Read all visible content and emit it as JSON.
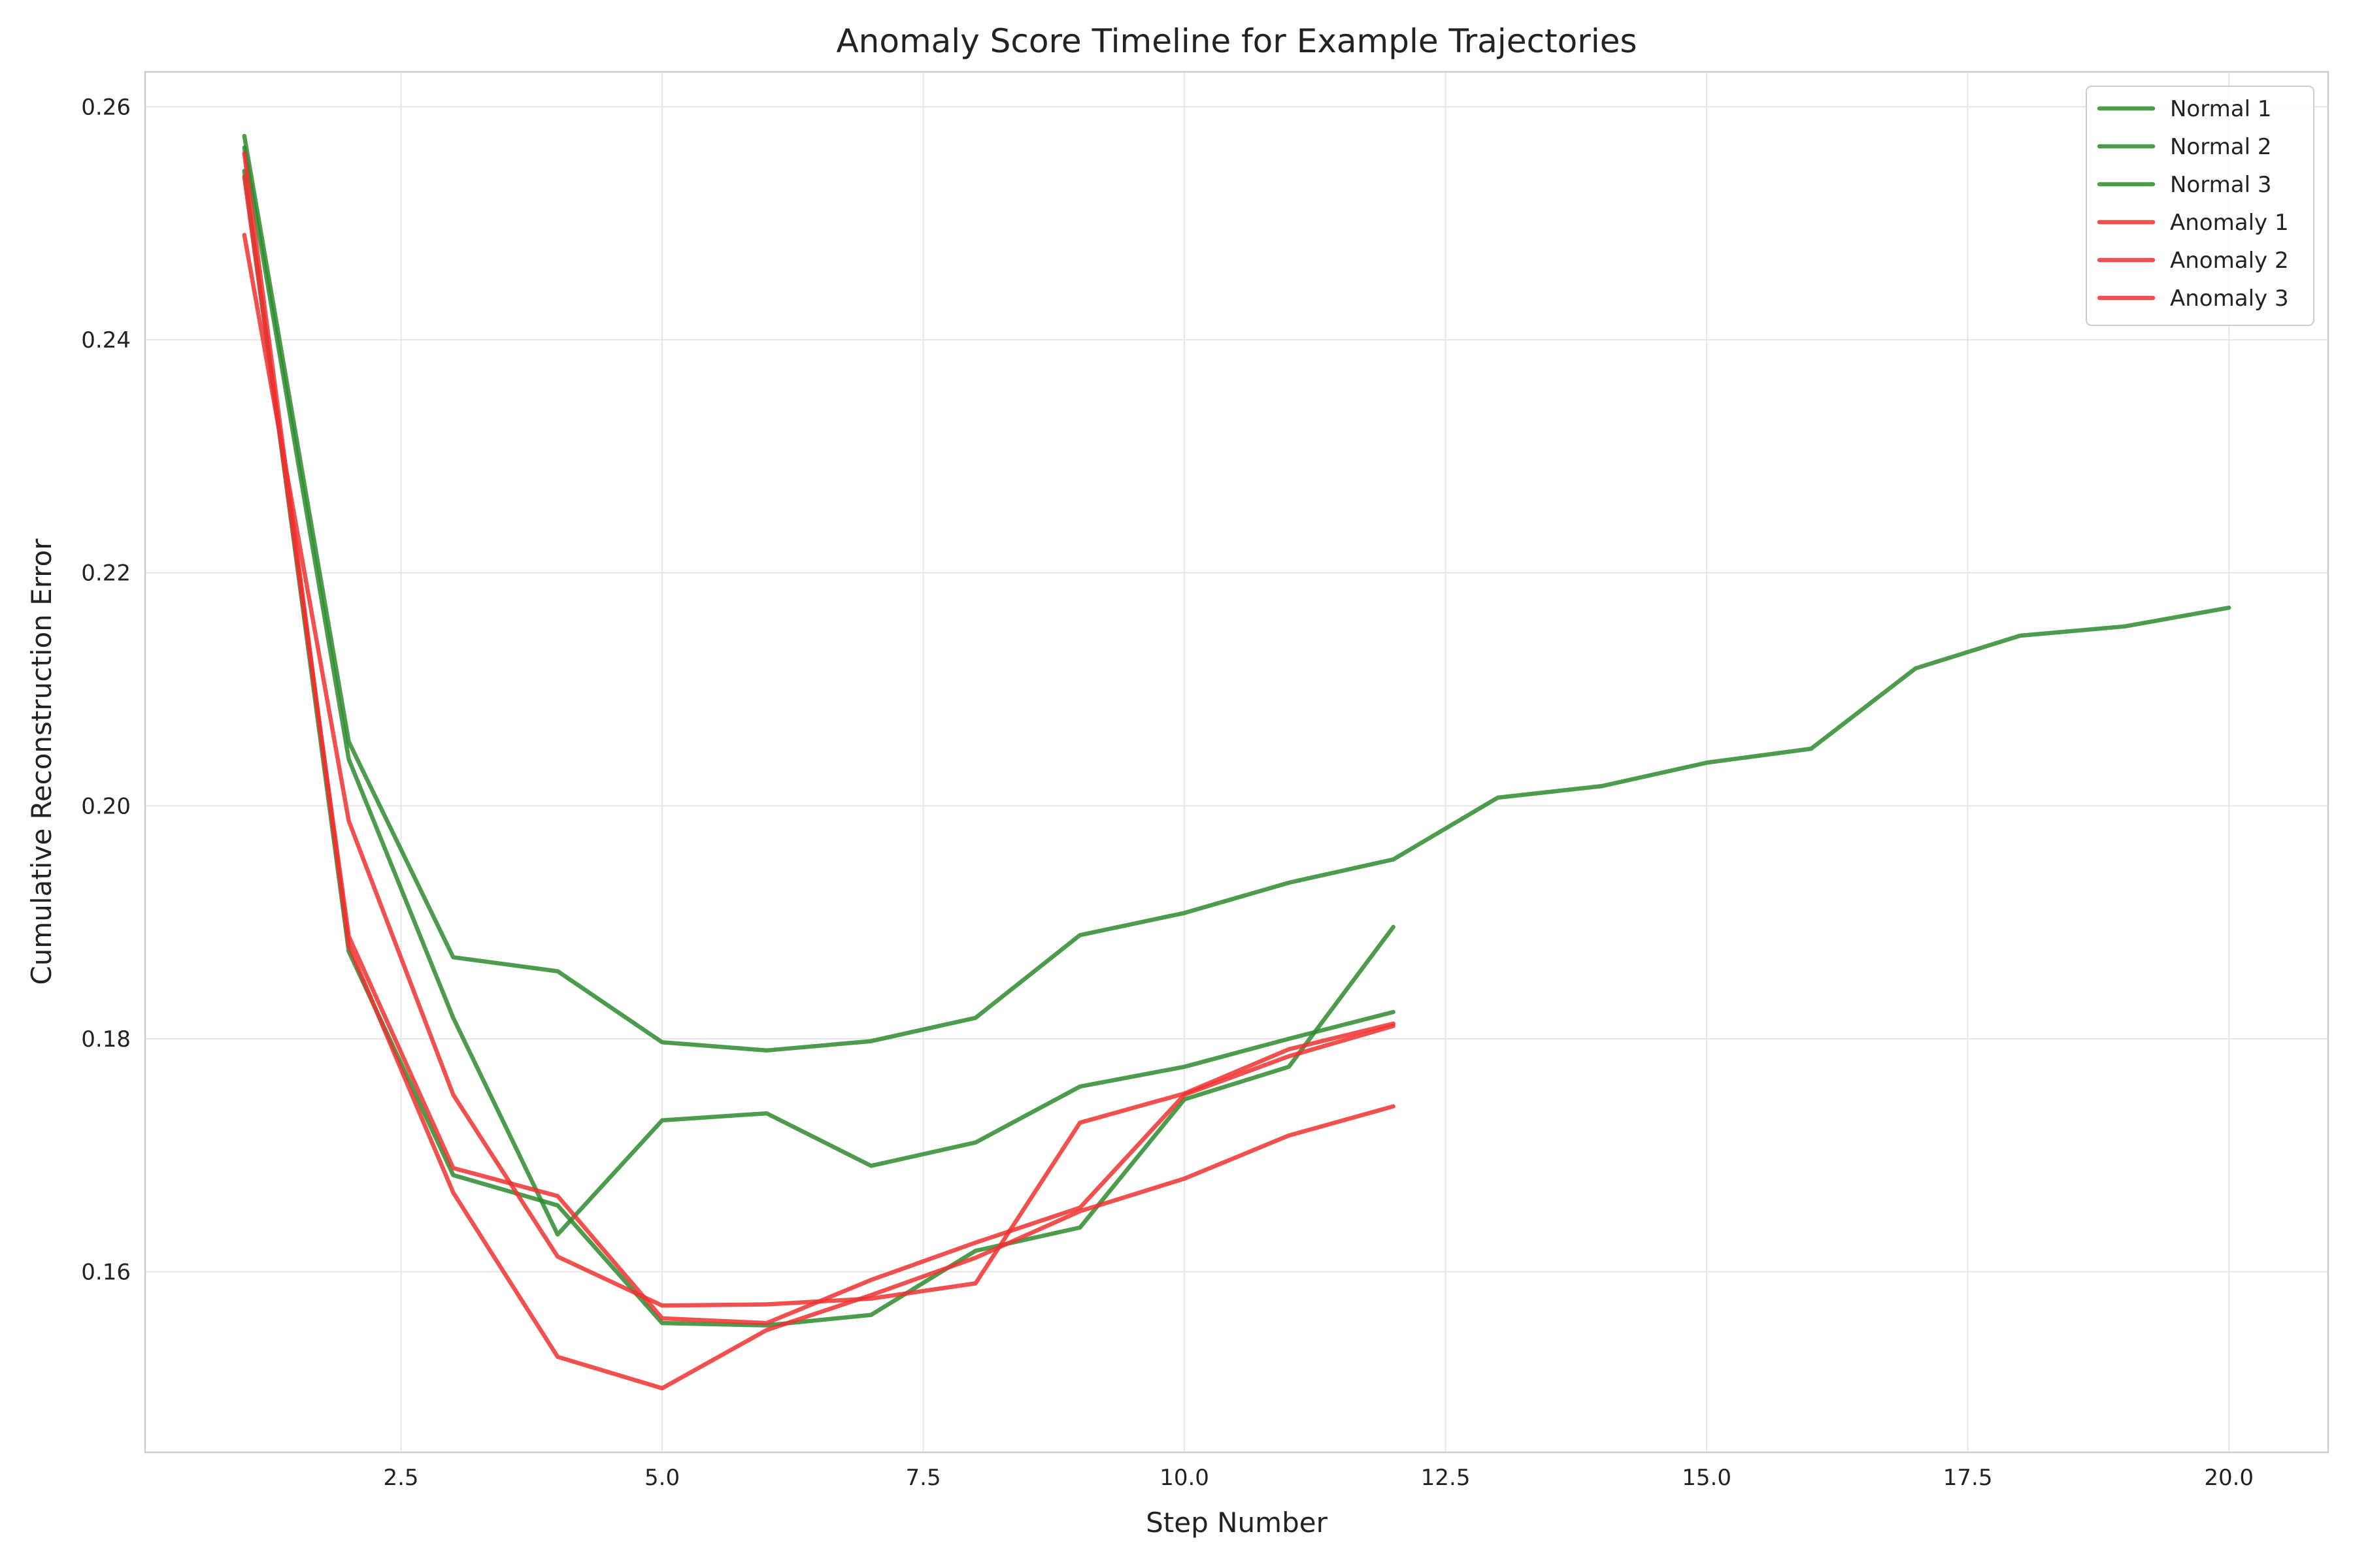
{
  "chart_data": {
    "type": "line",
    "title": "Anomaly Score Timeline for Example Trajectories",
    "xlabel": "Step Number",
    "ylabel": "Cumulative Reconstruction Error",
    "xlim": [
      0.05,
      20.95
    ],
    "ylim": [
      0.1445,
      0.263
    ],
    "xticks": [
      2.5,
      5.0,
      7.5,
      10.0,
      12.5,
      15.0,
      17.5,
      20.0
    ],
    "xtick_labels": [
      "2.5",
      "5.0",
      "7.5",
      "10.0",
      "12.5",
      "15.0",
      "17.5",
      "20.0"
    ],
    "yticks": [
      0.16,
      0.18,
      0.2,
      0.22,
      0.24,
      0.26
    ],
    "ytick_labels": [
      "0.16",
      "0.18",
      "0.20",
      "0.22",
      "0.24",
      "0.26"
    ],
    "grid": true,
    "legend_position": "top-right",
    "series": [
      {
        "name": "Normal 1",
        "color": "#2e8b2e",
        "x": [
          1,
          2,
          3,
          4,
          5,
          6,
          7,
          8,
          9,
          10,
          11,
          12,
          13,
          14,
          15,
          16,
          17,
          18,
          19,
          20
        ],
        "values": [
          0.2575,
          0.2055,
          0.187,
          0.1858,
          0.1797,
          0.179,
          0.1798,
          0.1818,
          0.1889,
          0.1908,
          0.1934,
          0.1954,
          0.2007,
          0.2017,
          0.2037,
          0.2049,
          0.2118,
          0.2146,
          0.2154,
          0.217
        ]
      },
      {
        "name": "Normal 2",
        "color": "#2e8b2e",
        "x": [
          1,
          2,
          3,
          4,
          5,
          6,
          7,
          8,
          9,
          10,
          11,
          12
        ],
        "values": [
          0.2565,
          0.204,
          0.1818,
          0.1632,
          0.173,
          0.1736,
          0.1691,
          0.1711,
          0.1759,
          0.1776,
          0.18,
          0.1823
        ]
      },
      {
        "name": "Normal 3",
        "color": "#2e8b2e",
        "x": [
          1,
          2,
          3,
          4,
          5,
          6,
          7,
          8,
          9,
          10,
          11,
          12
        ],
        "values": [
          0.2545,
          0.1875,
          0.1683,
          0.1657,
          0.1556,
          0.1554,
          0.1563,
          0.1618,
          0.1638,
          0.1748,
          0.1776,
          0.1896
        ]
      },
      {
        "name": "Anomaly 1",
        "color": "#f03030",
        "x": [
          1,
          2,
          3,
          4,
          5,
          6,
          7,
          8,
          9,
          10,
          11,
          12
        ],
        "values": [
          0.249,
          0.1987,
          0.1752,
          0.1613,
          0.1571,
          0.1572,
          0.1577,
          0.159,
          0.1728,
          0.1753,
          0.1791,
          0.1813
        ]
      },
      {
        "name": "Anomaly 2",
        "color": "#f03030",
        "x": [
          1,
          2,
          3,
          4,
          5,
          6,
          7,
          8,
          9,
          10,
          11,
          12
        ],
        "values": [
          0.256,
          0.188,
          0.1668,
          0.1527,
          0.15,
          0.155,
          0.158,
          0.1612,
          0.1652,
          0.168,
          0.1717,
          0.1742
        ]
      },
      {
        "name": "Anomaly 3",
        "color": "#f03030",
        "x": [
          1,
          2,
          3,
          4,
          5,
          6,
          7,
          8,
          9,
          10,
          11,
          12
        ],
        "values": [
          0.254,
          0.1888,
          0.1689,
          0.1665,
          0.156,
          0.1556,
          0.1593,
          0.1625,
          0.1655,
          0.1752,
          0.1785,
          0.1811
        ]
      }
    ]
  }
}
